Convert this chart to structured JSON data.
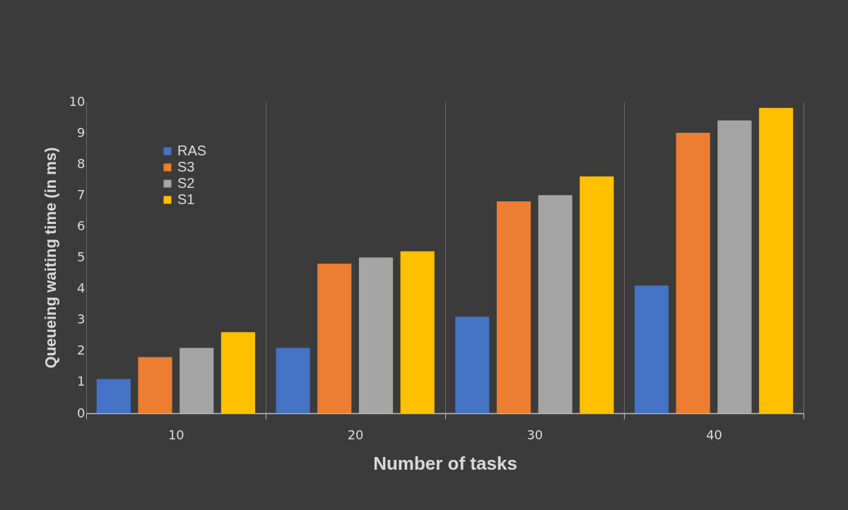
{
  "chart_data": {
    "type": "bar",
    "xlabel": "Number of tasks",
    "ylabel": "Queueing  waiting time (in ms)",
    "categories": [
      "10",
      "20",
      "30",
      "40"
    ],
    "series": [
      {
        "name": "RAS",
        "color": "#4472c4",
        "values": [
          1.1,
          2.1,
          3.1,
          4.1
        ]
      },
      {
        "name": "S3",
        "color": "#ed7d31",
        "values": [
          1.8,
          4.8,
          6.8,
          9.0
        ]
      },
      {
        "name": "S2",
        "color": "#a5a5a5",
        "values": [
          2.1,
          5.0,
          7.0,
          9.4
        ]
      },
      {
        "name": "S1",
        "color": "#ffc000",
        "values": [
          2.6,
          5.2,
          7.6,
          9.8
        ]
      }
    ],
    "ylim": [
      0,
      10
    ],
    "yticks": [
      0,
      1,
      2,
      3,
      4,
      5,
      6,
      7,
      8,
      9,
      10
    ],
    "grid": "x",
    "legend": "top left"
  }
}
